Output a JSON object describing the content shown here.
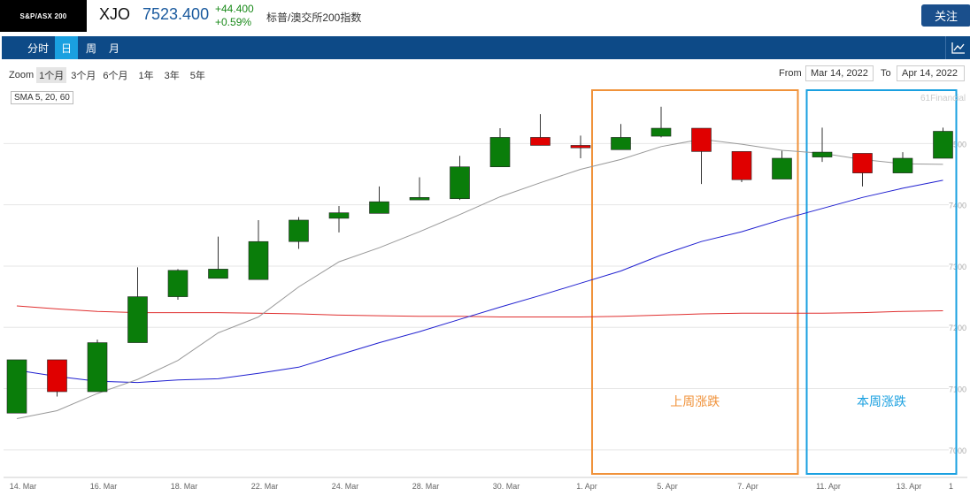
{
  "header": {
    "logo_text": "S&P/ASX 200",
    "ticker": "XJO",
    "price": "7523.400",
    "change": "+44.400",
    "change_pct": "+0.59%",
    "name": "标普/澳交所200指数",
    "follow_label": "关注"
  },
  "tabs": [
    {
      "label": "分时",
      "active": false
    },
    {
      "label": "日",
      "active": true
    },
    {
      "label": "周",
      "active": false
    },
    {
      "label": "月",
      "active": false
    }
  ],
  "zoom": {
    "label": "Zoom",
    "options": [
      "1个月",
      "3个月",
      "6个月",
      "1年",
      "3年",
      "5年"
    ],
    "selected": "1个月"
  },
  "date_range": {
    "from_label": "From",
    "from_value": "Mar 14, 2022",
    "to_label": "To",
    "to_value": "Apr 14, 2022"
  },
  "icons": {
    "chart_toggle": "line-chart-icon"
  },
  "colors": {
    "up": "#0a7d0a",
    "down": "#e00000",
    "sma5": "#999999",
    "sma20": "#2020d0",
    "sma60": "#e03030",
    "box_last_week": "#f0923a",
    "box_this_week": "#1aa0e0"
  },
  "chart_data": {
    "type": "candlestick",
    "indicator_label": "SMA 5, 20, 60",
    "credit": "61Financial",
    "y_ticks": [
      7000,
      7100,
      7200,
      7300,
      7400,
      7500
    ],
    "y_tick_labels": [
      "7000",
      "7100",
      "7200",
      "7300",
      "7400",
      "7500"
    ],
    "ylim": [
      6955,
      7590
    ],
    "dates": [
      "14. Mar",
      "15. Mar",
      "16. Mar",
      "17. Mar",
      "18. Mar",
      "21. Mar",
      "22. Mar",
      "23. Mar",
      "24. Mar",
      "25. Mar",
      "28. Mar",
      "29. Mar",
      "30. Mar",
      "31. Mar",
      "1. Apr",
      "4. Apr",
      "5. Apr",
      "6. Apr",
      "7. Apr",
      "8. Apr",
      "11. Apr",
      "12. Apr",
      "13. Apr",
      "14. Apr"
    ],
    "x_tick_labels": [
      "14. Mar",
      "16. Mar",
      "18. Mar",
      "22. Mar",
      "24. Mar",
      "28. Mar",
      "30. Mar",
      "1. Apr",
      "5. Apr",
      "7. Apr",
      "11. Apr",
      "13. Apr",
      "1"
    ],
    "ohlc": [
      [
        7060,
        7147,
        7060,
        7147
      ],
      [
        7147,
        7147,
        7087,
        7095
      ],
      [
        7095,
        7180,
        7095,
        7175
      ],
      [
        7175,
        7298,
        7175,
        7250
      ],
      [
        7250,
        7295,
        7245,
        7293
      ],
      [
        7280,
        7348,
        7280,
        7295
      ],
      [
        7278,
        7375,
        7278,
        7340
      ],
      [
        7340,
        7380,
        7328,
        7375
      ],
      [
        7378,
        7398,
        7355,
        7387
      ],
      [
        7386,
        7430,
        7386,
        7405
      ],
      [
        7408,
        7445,
        7408,
        7412
      ],
      [
        7410,
        7480,
        7408,
        7462
      ],
      [
        7462,
        7525,
        7462,
        7510
      ],
      [
        7510,
        7548,
        7497,
        7497
      ],
      [
        7497,
        7513,
        7476,
        7493
      ],
      [
        7490,
        7532,
        7490,
        7510
      ],
      [
        7512,
        7560,
        7510,
        7525
      ],
      [
        7525,
        7525,
        7434,
        7487
      ],
      [
        7487,
        7487,
        7437,
        7441
      ],
      [
        7442,
        7488,
        7442,
        7476
      ],
      [
        7478,
        7526,
        7470,
        7486
      ],
      [
        7484,
        7484,
        7430,
        7452
      ],
      [
        7452,
        7486,
        7452,
        7476
      ],
      [
        7476,
        7526,
        7476,
        7520
      ]
    ],
    "sma5": [
      7051,
      7064,
      7092,
      7115,
      7146,
      7191,
      7217,
      7266,
      7307,
      7330,
      7356,
      7384,
      7413,
      7436,
      7458,
      7474,
      7495,
      7507,
      7499,
      7489,
      7484,
      7474,
      7467,
      7466
    ],
    "sma20": [
      7130,
      7120,
      7112,
      7110,
      7114,
      7116,
      7125,
      7135,
      7155,
      7175,
      7193,
      7213,
      7233,
      7252,
      7272,
      7292,
      7318,
      7340,
      7356,
      7376,
      7394,
      7412,
      7427,
      7440
    ],
    "sma60": [
      7235,
      7230,
      7226,
      7224,
      7224,
      7224,
      7223,
      7222,
      7220,
      7219,
      7218,
      7218,
      7217,
      7217,
      7217,
      7218,
      7220,
      7222,
      7223,
      7223,
      7223,
      7224,
      7226,
      7227
    ],
    "annotations": [
      {
        "label": "上周涨跌",
        "color": "#f0923a"
      },
      {
        "label": "本周涨跌",
        "color": "#1aa0e0"
      }
    ],
    "grid": true
  }
}
